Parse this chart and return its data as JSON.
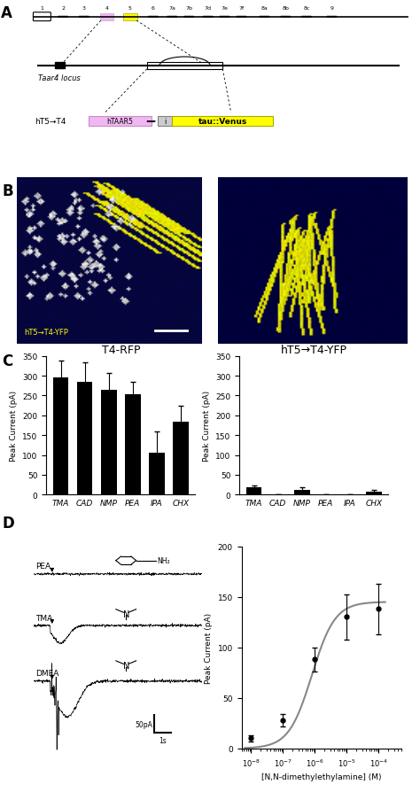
{
  "panel_A": {
    "chromosomes": [
      "1",
      "2",
      "3",
      "4",
      "5",
      "6",
      "7a",
      "7b",
      "7d",
      "7e",
      "7f",
      "8a",
      "8b",
      "8c",
      "9"
    ],
    "taar4_label": "Taar4 locus",
    "ht5_label": "hT5→T4",
    "htaar5_label": "hTAAR5",
    "venus_label": "tau::Venus",
    "i_label": "i"
  },
  "panel_C_left": {
    "title": "T4-RFP",
    "categories": [
      "TMA",
      "CAD",
      "NMP",
      "PEA",
      "IPA",
      "CHX"
    ],
    "values": [
      295,
      285,
      265,
      253,
      105,
      183
    ],
    "errors": [
      43,
      48,
      42,
      32,
      55,
      42
    ],
    "ylabel": "Peak Current (pA)",
    "ylim": [
      0,
      350
    ],
    "yticks": [
      0,
      50,
      100,
      150,
      200,
      250,
      300,
      350
    ],
    "bar_color": "#000000"
  },
  "panel_C_right": {
    "title": "hT5→T4-YFP",
    "categories": [
      "TMA",
      "CAD",
      "NMP",
      "PEA",
      "IPA",
      "CHX"
    ],
    "values": [
      18,
      0,
      12,
      0,
      0,
      8
    ],
    "errors": [
      5,
      0,
      6,
      0,
      0,
      5
    ],
    "ylabel": "Peak Current (pA)",
    "ylim": [
      0,
      350
    ],
    "yticks": [
      0,
      50,
      100,
      150,
      200,
      250,
      300,
      350
    ],
    "bar_color": "#000000"
  },
  "panel_D_right": {
    "xlabel": "[N,N-dimethylethylamine] (M)",
    "ylabel": "Peak Current (pA)",
    "ylim": [
      0,
      200
    ],
    "yticks": [
      0,
      50,
      100,
      150,
      200
    ],
    "xdata": [
      1e-08,
      1e-07,
      1e-06,
      1e-05,
      0.0001
    ],
    "ydata": [
      10,
      28,
      88,
      130,
      138
    ],
    "yerr": [
      3,
      6,
      12,
      22,
      25
    ],
    "curve_color": "#888888"
  },
  "background_color": "#ffffff",
  "label_fontsize": 12,
  "axis_fontsize": 7,
  "title_fontsize": 9
}
